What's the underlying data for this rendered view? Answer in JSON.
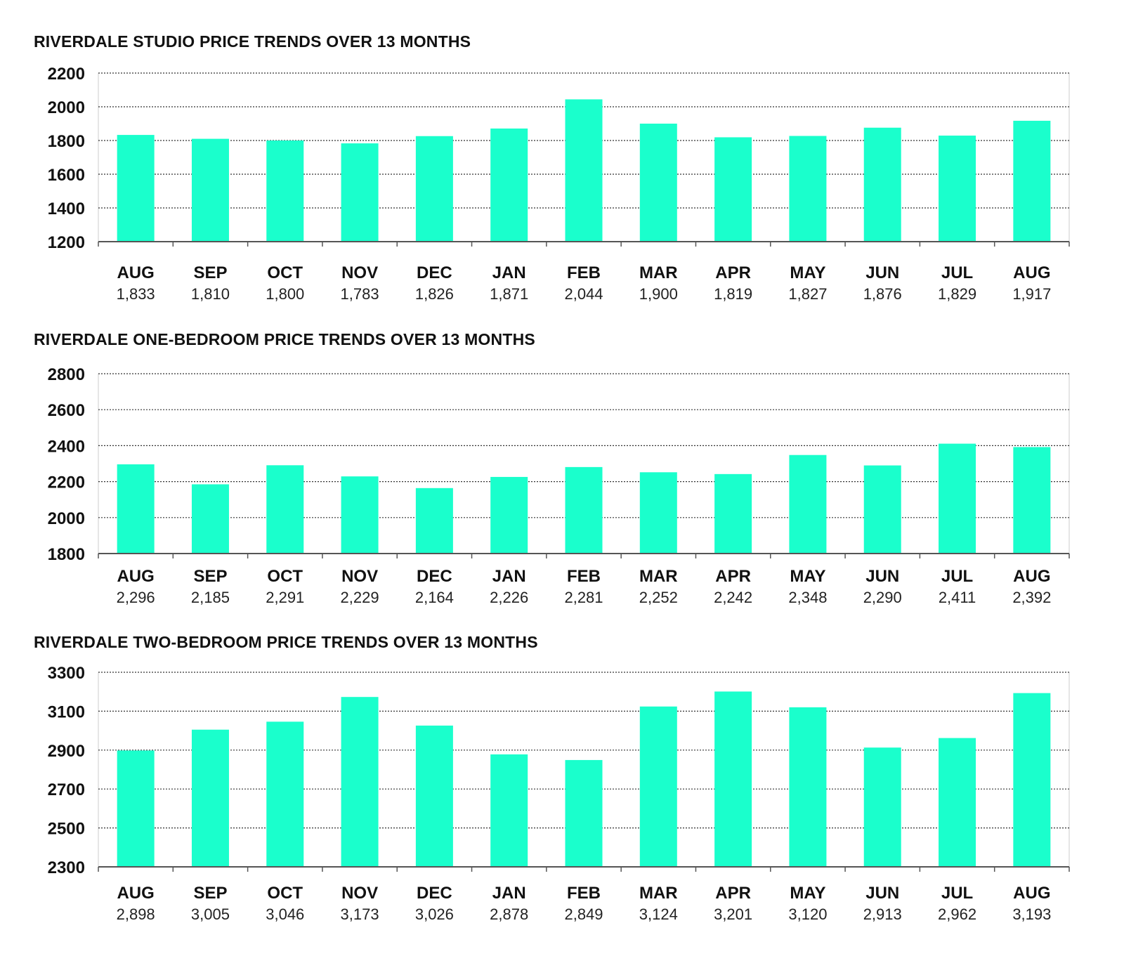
{
  "colors": {
    "bar": "#1affcc",
    "axis": "#555555",
    "grid": "#333333",
    "frame": "#cccccc"
  },
  "chart_data": [
    {
      "type": "bar",
      "title": "RIVERDALE STUDIO PRICE TRENDS OVER 13 MONTHS",
      "categories": [
        "AUG",
        "SEP",
        "OCT",
        "NOV",
        "DEC",
        "JAN",
        "FEB",
        "MAR",
        "APR",
        "MAY",
        "JUN",
        "JUL",
        "AUG"
      ],
      "values": [
        1833,
        1810,
        1800,
        1783,
        1826,
        1871,
        2044,
        1900,
        1819,
        1827,
        1876,
        1829,
        1917
      ],
      "value_labels": [
        "1,833",
        "1,810",
        "1,800",
        "1,783",
        "1,826",
        "1,871",
        "2,044",
        "1,900",
        "1,819",
        "1,827",
        "1,876",
        "1,829",
        "1,917"
      ],
      "ylim": [
        1200,
        2200
      ],
      "yticks": [
        1200,
        1400,
        1600,
        1800,
        2000,
        2200
      ],
      "grid": true,
      "xlabel": "",
      "ylabel": ""
    },
    {
      "type": "bar",
      "title": "RIVERDALE ONE-BEDROOM PRICE TRENDS OVER 13 MONTHS",
      "categories": [
        "AUG",
        "SEP",
        "OCT",
        "NOV",
        "DEC",
        "JAN",
        "FEB",
        "MAR",
        "APR",
        "MAY",
        "JUN",
        "JUL",
        "AUG"
      ],
      "values": [
        2296,
        2185,
        2291,
        2229,
        2164,
        2226,
        2281,
        2252,
        2242,
        2348,
        2290,
        2411,
        2392
      ],
      "value_labels": [
        "2,296",
        "2,185",
        "2,291",
        "2,229",
        "2,164",
        "2,226",
        "2,281",
        "2,252",
        "2,242",
        "2,348",
        "2,290",
        "2,411",
        "2,392"
      ],
      "ylim": [
        1800,
        2800
      ],
      "yticks": [
        1800,
        2000,
        2200,
        2400,
        2600,
        2800
      ],
      "grid": true,
      "xlabel": "",
      "ylabel": ""
    },
    {
      "type": "bar",
      "title": "RIVERDALE TWO-BEDROOM PRICE TRENDS OVER 13 MONTHS",
      "categories": [
        "AUG",
        "SEP",
        "OCT",
        "NOV",
        "DEC",
        "JAN",
        "FEB",
        "MAR",
        "APR",
        "MAY",
        "JUN",
        "JUL",
        "AUG"
      ],
      "values": [
        2898,
        3005,
        3046,
        3173,
        3026,
        2878,
        2849,
        3124,
        3201,
        3120,
        2913,
        2962,
        3193
      ],
      "value_labels": [
        "2,898",
        "3,005",
        "3,046",
        "3,173",
        "3,026",
        "2,878",
        "2,849",
        "3,124",
        "3,201",
        "3,120",
        "2,913",
        "2,962",
        "3,193"
      ],
      "ylim": [
        2300,
        3300
      ],
      "yticks": [
        2300,
        2500,
        2700,
        2900,
        3100,
        3300
      ],
      "grid": true,
      "xlabel": "",
      "ylabel": ""
    }
  ]
}
